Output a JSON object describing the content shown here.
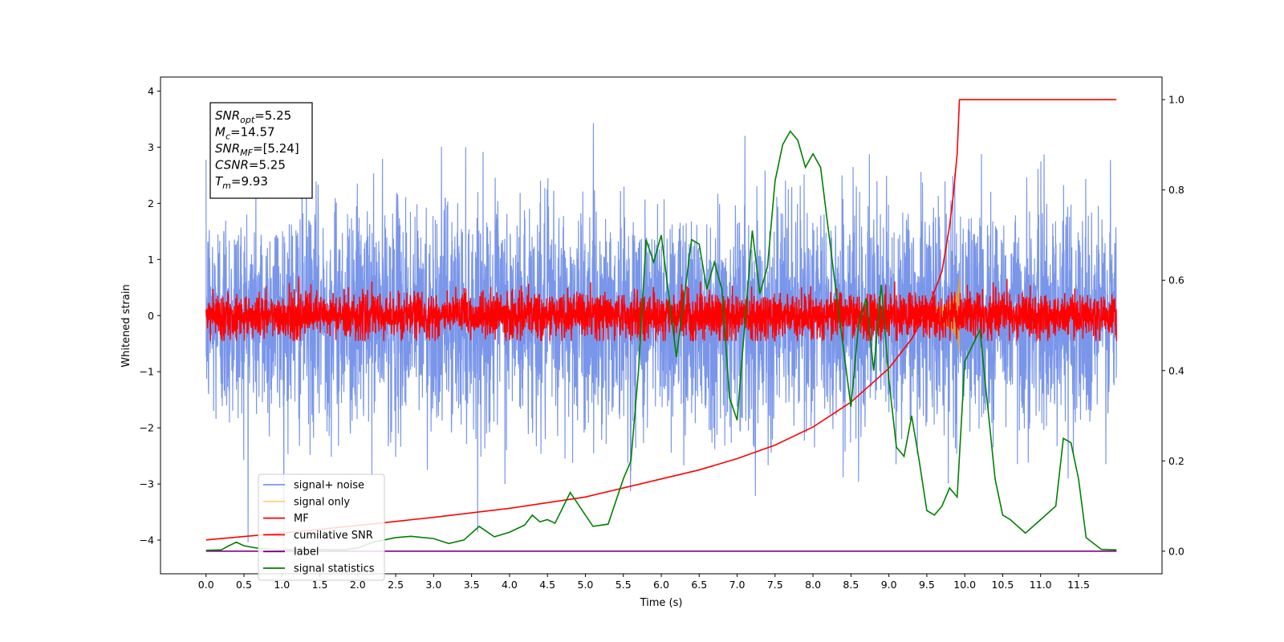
{
  "chart_data": {
    "type": "line",
    "title": "",
    "xlabel": "Time (s)",
    "ylabel": "Whitened strain",
    "y2label": "",
    "xlim": [
      -0.6,
      12.6
    ],
    "ylim": [
      -4.6,
      4.25
    ],
    "y2lim": [
      -0.05,
      1.05
    ],
    "xticks": [
      "0.0",
      "0.5",
      "1.0",
      "1.5",
      "2.0",
      "2.5",
      "3.0",
      "3.5",
      "4.0",
      "4.5",
      "5.0",
      "5.5",
      "6.0",
      "6.5",
      "7.0",
      "7.5",
      "8.0",
      "8.5",
      "9.0",
      "9.5",
      "10.0",
      "10.5",
      "11.0",
      "11.5"
    ],
    "yticks": [
      -4,
      -3,
      -2,
      -1,
      0,
      1,
      2,
      3,
      4
    ],
    "y2ticks": [
      "0.0",
      "0.2",
      "0.4",
      "0.6",
      "0.8",
      "1.0"
    ],
    "legend_position": "lower-left",
    "info_box": {
      "lines": [
        {
          "sym": "SNR",
          "sub": "opt",
          "value": "=5.25"
        },
        {
          "sym": "M",
          "sub": "c",
          "value": "=14.57"
        },
        {
          "sym": "SNR",
          "sub": "MF",
          "value": "=[5.24]"
        },
        {
          "sym": "CSNR",
          "sub": "",
          "value": "=5.25"
        },
        {
          "sym": "T",
          "sub": "m",
          "value": "=9.93"
        }
      ]
    },
    "series": [
      {
        "name": "signal+ noise",
        "color": "#4169e1",
        "axis": "left",
        "kind": "noise",
        "amplitude_sigma": 1.0,
        "x_range": [
          0.0,
          12.0
        ]
      },
      {
        "name": "signal only",
        "color": "#ffa500",
        "axis": "left",
        "kind": "chirp",
        "peak_time": 9.93,
        "peak_amplitude": 0.8
      },
      {
        "name": "MF",
        "color": "#ff0000",
        "axis": "left",
        "kind": "noise",
        "amplitude_sigma": 0.2,
        "x_range": [
          0.0,
          12.0
        ]
      },
      {
        "name": "cumilative SNR",
        "color": "#ff0000",
        "axis": "right",
        "x": [
          0.0,
          1.0,
          2.0,
          3.0,
          4.0,
          5.0,
          6.0,
          6.5,
          7.0,
          7.5,
          8.0,
          8.5,
          9.0,
          9.3,
          9.5,
          9.7,
          9.8,
          9.85,
          9.9,
          9.93,
          10.5,
          12.0
        ],
        "values": [
          0.025,
          0.04,
          0.057,
          0.075,
          0.095,
          0.12,
          0.16,
          0.18,
          0.205,
          0.235,
          0.275,
          0.33,
          0.405,
          0.47,
          0.53,
          0.62,
          0.72,
          0.79,
          0.88,
          1.0,
          1.0,
          1.0
        ]
      },
      {
        "name": "label",
        "color": "#800080",
        "axis": "right",
        "x": [
          0.0,
          12.0
        ],
        "values": [
          0.0,
          0.0
        ]
      },
      {
        "name": "signal statistics",
        "color": "#008000",
        "axis": "right",
        "x": [
          0.0,
          0.2,
          0.3,
          0.4,
          0.5,
          0.7,
          1.0,
          1.3,
          1.5,
          1.8,
          2.0,
          2.2,
          2.5,
          2.7,
          3.0,
          3.2,
          3.4,
          3.6,
          3.8,
          4.0,
          4.2,
          4.3,
          4.4,
          4.5,
          4.6,
          4.8,
          5.0,
          5.1,
          5.3,
          5.5,
          5.6,
          5.7,
          5.8,
          5.9,
          6.0,
          6.2,
          6.4,
          6.5,
          6.6,
          6.7,
          6.8,
          6.9,
          7.0,
          7.2,
          7.3,
          7.4,
          7.5,
          7.6,
          7.7,
          7.8,
          7.9,
          8.0,
          8.1,
          8.3,
          8.5,
          8.6,
          8.7,
          8.8,
          8.9,
          9.0,
          9.1,
          9.2,
          9.3,
          9.4,
          9.5,
          9.6,
          9.7,
          9.8,
          9.9,
          10.0,
          10.2,
          10.4,
          10.5,
          10.6,
          10.8,
          11.0,
          11.2,
          11.3,
          11.4,
          11.5,
          11.6,
          11.8,
          12.0
        ],
        "values": [
          0.002,
          0.003,
          0.012,
          0.02,
          0.012,
          0.006,
          0.003,
          0.005,
          0.004,
          0.003,
          0.007,
          0.02,
          0.03,
          0.033,
          0.028,
          0.017,
          0.025,
          0.055,
          0.032,
          0.042,
          0.058,
          0.08,
          0.065,
          0.07,
          0.062,
          0.13,
          0.08,
          0.055,
          0.06,
          0.16,
          0.2,
          0.4,
          0.69,
          0.64,
          0.7,
          0.43,
          0.69,
          0.68,
          0.58,
          0.64,
          0.58,
          0.34,
          0.29,
          0.71,
          0.57,
          0.63,
          0.82,
          0.9,
          0.93,
          0.91,
          0.85,
          0.88,
          0.85,
          0.58,
          0.32,
          0.5,
          0.56,
          0.4,
          0.59,
          0.38,
          0.23,
          0.21,
          0.3,
          0.2,
          0.09,
          0.08,
          0.1,
          0.14,
          0.12,
          0.42,
          0.49,
          0.16,
          0.08,
          0.07,
          0.04,
          0.07,
          0.1,
          0.25,
          0.24,
          0.16,
          0.03,
          0.004,
          0.003
        ]
      }
    ]
  }
}
